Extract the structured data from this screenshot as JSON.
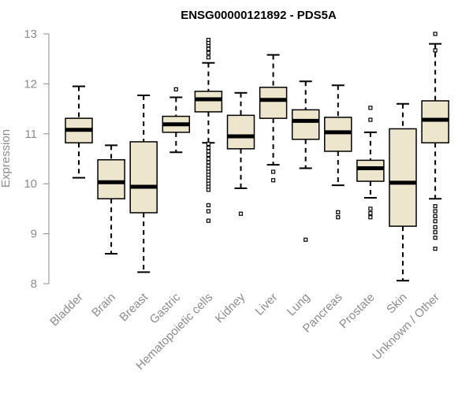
{
  "chart_data": {
    "type": "boxplot",
    "title": "ENSG00000121892 - PDS5A",
    "xlabel": "",
    "ylabel": "Expression",
    "ylim": [
      8,
      13
    ],
    "yticks": [
      "8",
      "9",
      "10",
      "11",
      "12",
      "13"
    ],
    "grid": false,
    "legend": "none",
    "box_fill": "#ede5cc",
    "categories": [
      "Bladder",
      "Brain",
      "Breast",
      "Gastric",
      "Hematopoietic cells",
      "Kidney",
      "Liver",
      "Lung",
      "Pancreas",
      "Prostate",
      "Skin",
      "Unknown / Other"
    ],
    "boxes": [
      {
        "min": 10.12,
        "q1": 10.82,
        "median": 11.08,
        "q3": 11.31,
        "max": 11.95,
        "outliers": []
      },
      {
        "min": 8.6,
        "q1": 9.7,
        "median": 10.03,
        "q3": 10.48,
        "max": 10.77,
        "outliers": []
      },
      {
        "min": 8.23,
        "q1": 9.42,
        "median": 9.94,
        "q3": 10.84,
        "max": 11.77,
        "outliers": []
      },
      {
        "min": 10.63,
        "q1": 11.03,
        "median": 11.19,
        "q3": 11.35,
        "max": 11.73,
        "outliers": [
          11.89
        ]
      },
      {
        "min": 10.82,
        "q1": 11.44,
        "median": 11.69,
        "q3": 11.85,
        "max": 12.42,
        "outliers": [
          12.53,
          12.62,
          12.7,
          12.77,
          12.82,
          12.88,
          10.8,
          10.72,
          10.65,
          10.58,
          10.5,
          10.43,
          10.36,
          10.3,
          10.24,
          10.18,
          10.12,
          10.06,
          10.0,
          9.94,
          9.88,
          9.57,
          9.45,
          9.26
        ]
      },
      {
        "min": 9.91,
        "q1": 10.7,
        "median": 10.95,
        "q3": 11.37,
        "max": 11.82,
        "outliers": [
          9.4
        ]
      },
      {
        "min": 10.38,
        "q1": 11.31,
        "median": 11.68,
        "q3": 11.93,
        "max": 12.58,
        "outliers": [
          10.24,
          10.07
        ]
      },
      {
        "min": 10.31,
        "q1": 10.89,
        "median": 11.26,
        "q3": 11.48,
        "max": 12.05,
        "outliers": [
          8.88
        ]
      },
      {
        "min": 9.97,
        "q1": 10.65,
        "median": 11.03,
        "q3": 11.33,
        "max": 11.97,
        "outliers": [
          9.43,
          9.33
        ]
      },
      {
        "min": 9.72,
        "q1": 10.05,
        "median": 10.31,
        "q3": 10.47,
        "max": 11.03,
        "outliers": [
          11.52,
          11.28,
          9.5,
          9.41,
          9.33
        ]
      },
      {
        "min": 8.06,
        "q1": 9.15,
        "median": 10.02,
        "q3": 11.1,
        "max": 11.6,
        "outliers": []
      },
      {
        "min": 9.7,
        "q1": 10.82,
        "median": 11.28,
        "q3": 11.66,
        "max": 12.8,
        "outliers": [
          13.0,
          12.67,
          9.55,
          9.45,
          9.35,
          9.25,
          9.13,
          9.03,
          8.92,
          8.7
        ]
      }
    ]
  }
}
